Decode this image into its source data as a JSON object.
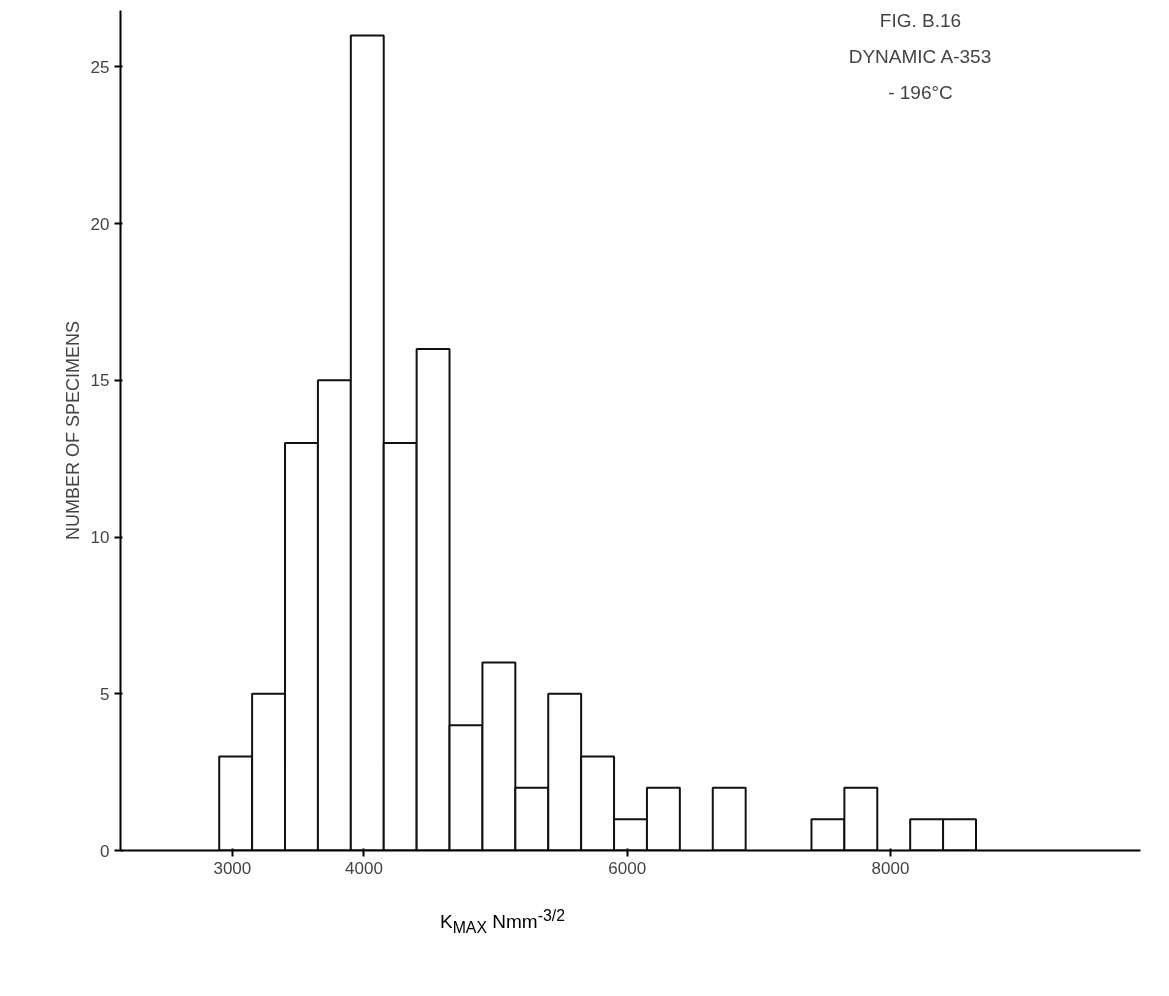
{
  "chart_data": {
    "type": "histogram",
    "annotations": [
      "FIG. B.16",
      "DYNAMIC A-353",
      "- 196°C"
    ],
    "xlabel": "K$_{MAX}$ Nmm$^{-3/2}$",
    "ylabel": "NUMBER OF SPECIMENS",
    "bins": [
      2900,
      3150,
      3400,
      3650,
      3900,
      4150,
      4400,
      4650,
      4900,
      5150,
      5400,
      5650,
      5900,
      6150,
      6400,
      6650,
      6900,
      7150,
      7400,
      7650,
      7900,
      8150,
      8400,
      8650
    ],
    "values": [
      3,
      5,
      13,
      15,
      26,
      13,
      16,
      4,
      6,
      2,
      5,
      3,
      1,
      2,
      0,
      2,
      0,
      0,
      1,
      2,
      0,
      1,
      1
    ],
    "color": "#ffffff",
    "xlim": [
      2150,
      9900
    ],
    "xticks": [
      3000,
      4000,
      6000,
      8000
    ],
    "ylim": [
      0,
      26.8
    ],
    "yticks": [
      0,
      5,
      10,
      15,
      20,
      25
    ],
    "grid": false
  }
}
